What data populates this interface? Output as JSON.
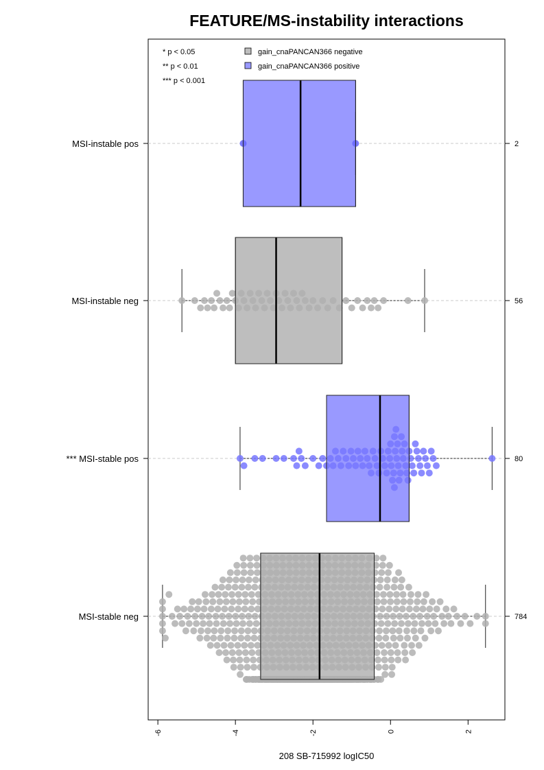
{
  "chart_data": {
    "type": "box",
    "title": "FEATURE/MS-instability interactions",
    "xlabel": "208 SB-715992 logIC50",
    "ylabel": "",
    "xlim": [
      -6.25,
      2.95
    ],
    "xticks": [
      -6,
      -4,
      -2,
      0,
      2
    ],
    "xtick_labels": [
      "-6",
      "-4",
      "-2",
      "0",
      "2"
    ],
    "grid": false,
    "legend": {
      "placement": "top",
      "entries": [
        {
          "label": "gain_cnaPANCAN366 negative",
          "color": "#bebebe"
        },
        {
          "label": "gain_cnaPANCAN366 positive",
          "color": "#9999ff"
        }
      ]
    },
    "significance_legend": [
      "* p < 0.05",
      "** p < 0.01",
      "*** p < 0.001"
    ],
    "groups": [
      {
        "label": "MSI-instable pos",
        "count": "2",
        "fill": "#9999ff",
        "point_color": "#6666ff",
        "q1": -3.8,
        "median": -2.32,
        "q3": -0.9,
        "whisker_low": -3.8,
        "whisker_high": -0.9,
        "points": [
          -3.8,
          -0.9
        ]
      },
      {
        "label": "MSI-instable neg",
        "count": "56",
        "fill": "#bebebe",
        "point_color": "#b0b0b0",
        "q1": -4.0,
        "median": -2.95,
        "q3": -1.25,
        "whisker_low": -5.38,
        "whisker_high": 0.88,
        "points": [
          -5.38,
          -5.05,
          -4.9,
          -4.8,
          -4.72,
          -4.62,
          -4.55,
          -4.48,
          -4.4,
          -4.32,
          -4.22,
          -4.15,
          -4.08,
          -4.0,
          -3.92,
          -3.85,
          -3.78,
          -3.7,
          -3.62,
          -3.55,
          -3.48,
          -3.4,
          -3.32,
          -3.25,
          -3.18,
          -3.1,
          -3.02,
          -2.95,
          -2.88,
          -2.8,
          -2.72,
          -2.65,
          -2.58,
          -2.5,
          -2.42,
          -2.35,
          -2.28,
          -2.2,
          -2.1,
          -2.0,
          -1.88,
          -1.75,
          -1.62,
          -1.48,
          -1.32,
          -1.15,
          -1.0,
          -0.85,
          -0.72,
          -0.6,
          -0.5,
          -0.42,
          -0.32,
          -0.18,
          0.45,
          0.88
        ]
      },
      {
        "label": "*** MSI-stable pos",
        "count": "80",
        "fill": "#9999ff",
        "point_color": "#7777ff",
        "q1": -1.65,
        "median": -0.27,
        "q3": 0.48,
        "whisker_low": -3.88,
        "whisker_high": 2.62,
        "points": [
          -3.88,
          -3.78,
          -3.5,
          -3.3,
          -2.95,
          -2.75,
          -2.5,
          -2.42,
          -2.36,
          -2.3,
          -2.2,
          -2.0,
          -1.85,
          -1.75,
          -1.65,
          -1.55,
          -1.48,
          -1.42,
          -1.35,
          -1.28,
          -1.22,
          -1.15,
          -1.08,
          -1.02,
          -0.96,
          -0.9,
          -0.84,
          -0.78,
          -0.72,
          -0.66,
          -0.6,
          -0.55,
          -0.5,
          -0.45,
          -0.4,
          -0.35,
          -0.3,
          -0.25,
          -0.2,
          -0.15,
          -0.1,
          -0.06,
          -0.02,
          0.02,
          0.05,
          0.08,
          0.1,
          0.12,
          0.14,
          0.16,
          0.18,
          0.2,
          0.22,
          0.25,
          0.28,
          0.3,
          0.33,
          0.36,
          0.39,
          0.42,
          0.45,
          0.48,
          0.52,
          0.56,
          0.6,
          0.64,
          0.68,
          0.72,
          0.76,
          0.8,
          0.85,
          0.9,
          0.95,
          1.0,
          1.05,
          1.1,
          1.18,
          0.0,
          0.1,
          2.62
        ]
      },
      {
        "label": "MSI-stable neg",
        "count": "784",
        "fill": "#bebebe",
        "point_color": "#b0b0b0",
        "q1": -3.35,
        "median": -1.83,
        "q3": -0.42,
        "whisker_low": -5.88,
        "whisker_high": 2.45,
        "dist": {
          "min": -5.88,
          "max": 2.45,
          "center": -2.0,
          "spread": 1.55,
          "n": 784
        }
      }
    ]
  }
}
